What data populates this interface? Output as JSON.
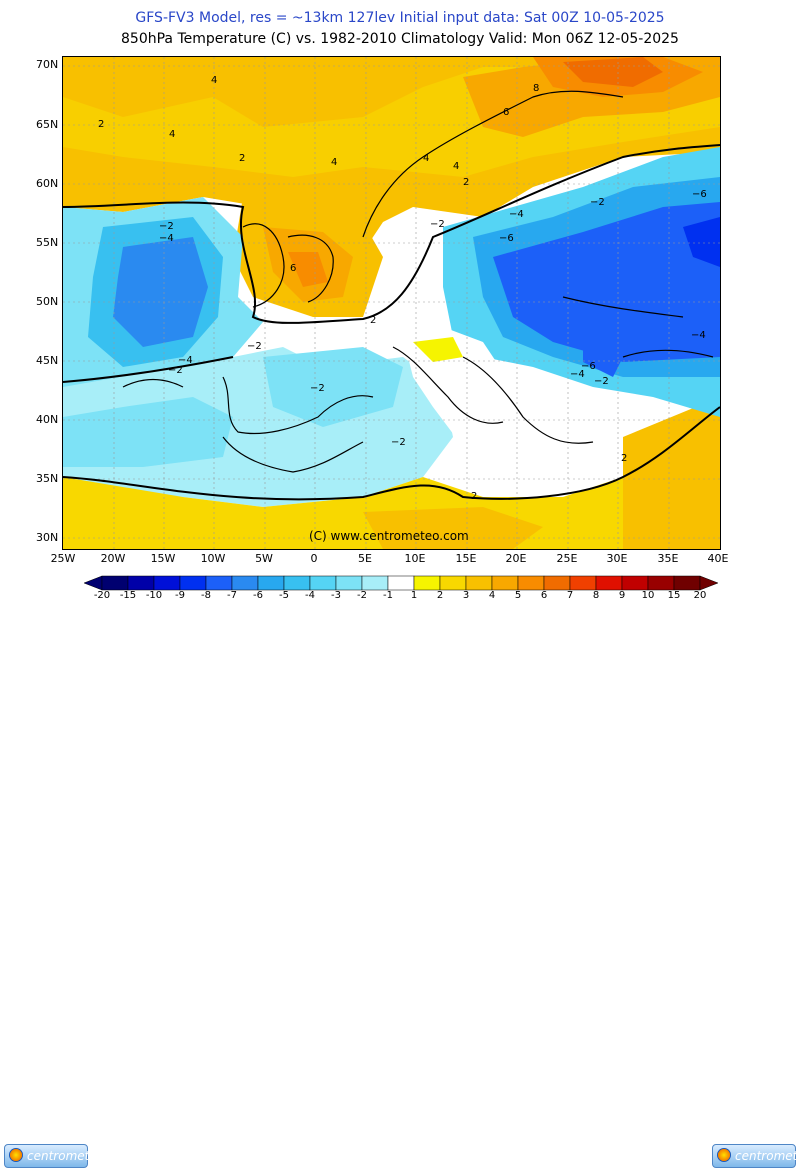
{
  "header": {
    "line1": "GFS-FV3 Model, res = ~13km 127lev    Initial input data: Sat 00Z 10-05-2025",
    "line2": "850hPa Temperature (C) vs. 1982-2010 Climatology  Valid: Mon 06Z 12-05-2025"
  },
  "map": {
    "copyright": "(C) www.centrometeo.com",
    "lat_labels": [
      "70N",
      "65N",
      "60N",
      "55N",
      "50N",
      "45N",
      "40N",
      "35N",
      "30N"
    ],
    "lon_labels": [
      "25W",
      "20W",
      "15W",
      "10W",
      "5W",
      "0",
      "5E",
      "10E",
      "15E",
      "20E",
      "25E",
      "30E",
      "35E",
      "40E"
    ],
    "contour_labels": {
      "plus2": "2",
      "plus4": "4",
      "plus6": "6",
      "plus8": "8",
      "minus2": "−2",
      "minus4": "−4",
      "minus6": "−6"
    }
  },
  "legend": {
    "ticks": [
      "-20",
      "-15",
      "-10",
      "-9",
      "-8",
      "-7",
      "-6",
      "-5",
      "-4",
      "-3",
      "-2",
      "-1",
      "1",
      "2",
      "3",
      "4",
      "5",
      "6",
      "7",
      "8",
      "9",
      "10",
      "15",
      "20"
    ],
    "colors": [
      "#000070",
      "#0000a8",
      "#0010d8",
      "#0030f0",
      "#1c60f8",
      "#2a8af0",
      "#28a8ef",
      "#38c0f0",
      "#55d4f4",
      "#7de2f6",
      "#a8eef8",
      "#ffffff",
      "#f6f400",
      "#f8d800",
      "#f8c000",
      "#f8a800",
      "#f88c00",
      "#f06c00",
      "#f04000",
      "#e01000",
      "#c00000",
      "#980000",
      "#700000"
    ],
    "logo_text": "centrometeo"
  }
}
